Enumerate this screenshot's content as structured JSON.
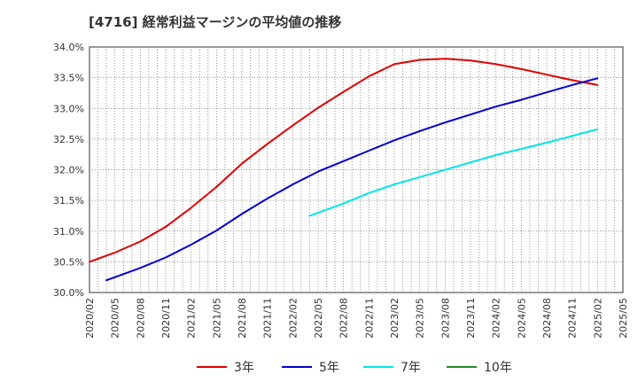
{
  "chart_data": {
    "type": "line",
    "title": "[4716]  経常利益マージンの平均値の推移",
    "xlabel": "",
    "ylabel": "",
    "ylim": [
      30.0,
      34.0
    ],
    "yticks": [
      "30.0%",
      "30.5%",
      "31.0%",
      "31.5%",
      "32.0%",
      "32.5%",
      "33.0%",
      "33.5%",
      "34.0%"
    ],
    "xticks": [
      "2020/02",
      "2020/05",
      "2020/08",
      "2020/11",
      "2021/02",
      "2021/05",
      "2021/08",
      "2021/11",
      "2022/02",
      "2022/05",
      "2022/08",
      "2022/11",
      "2023/02",
      "2023/05",
      "2023/08",
      "2023/11",
      "2024/02",
      "2024/05",
      "2024/08",
      "2024/11",
      "2025/02",
      "2025/05"
    ],
    "grid": true,
    "legend_position": "bottom",
    "series": [
      {
        "name": "3年",
        "color": "#dd0000",
        "points": [
          [
            "2020/02",
            30.5
          ],
          [
            "2020/05",
            30.65
          ],
          [
            "2020/08",
            30.83
          ],
          [
            "2020/11",
            31.07
          ],
          [
            "2021/02",
            31.38
          ],
          [
            "2021/05",
            31.72
          ],
          [
            "2021/08",
            32.1
          ],
          [
            "2021/11",
            32.42
          ],
          [
            "2022/02",
            32.72
          ],
          [
            "2022/05",
            33.01
          ],
          [
            "2022/08",
            33.27
          ],
          [
            "2022/11",
            33.52
          ],
          [
            "2023/02",
            33.72
          ],
          [
            "2023/05",
            33.79
          ],
          [
            "2023/08",
            33.81
          ],
          [
            "2023/11",
            33.78
          ],
          [
            "2024/02",
            33.72
          ],
          [
            "2024/05",
            33.64
          ],
          [
            "2024/08",
            33.55
          ],
          [
            "2024/11",
            33.46
          ],
          [
            "2025/02",
            33.38
          ]
        ]
      },
      {
        "name": "5年",
        "color": "#0000cc",
        "points": [
          [
            "2020/04",
            30.2
          ],
          [
            "2020/08",
            30.4
          ],
          [
            "2020/11",
            30.57
          ],
          [
            "2021/02",
            30.78
          ],
          [
            "2021/05",
            31.01
          ],
          [
            "2021/08",
            31.28
          ],
          [
            "2021/11",
            31.53
          ],
          [
            "2022/02",
            31.76
          ],
          [
            "2022/05",
            31.97
          ],
          [
            "2022/08",
            32.14
          ],
          [
            "2022/11",
            32.31
          ],
          [
            "2023/02",
            32.48
          ],
          [
            "2023/05",
            32.63
          ],
          [
            "2023/08",
            32.77
          ],
          [
            "2023/11",
            32.9
          ],
          [
            "2024/02",
            33.03
          ],
          [
            "2024/05",
            33.14
          ],
          [
            "2024/08",
            33.26
          ],
          [
            "2024/11",
            33.38
          ],
          [
            "2025/02",
            33.49
          ]
        ]
      },
      {
        "name": "7年",
        "color": "#00e5e5",
        "points": [
          [
            "2022/04",
            31.25
          ],
          [
            "2022/08",
            31.45
          ],
          [
            "2022/11",
            31.62
          ],
          [
            "2023/02",
            31.76
          ],
          [
            "2023/05",
            31.88
          ],
          [
            "2023/08",
            32.0
          ],
          [
            "2023/11",
            32.12
          ],
          [
            "2024/02",
            32.24
          ],
          [
            "2024/05",
            32.34
          ],
          [
            "2024/08",
            32.44
          ],
          [
            "2024/11",
            32.55
          ],
          [
            "2025/02",
            32.66
          ]
        ]
      },
      {
        "name": "10年",
        "color": "#228b22",
        "points": []
      }
    ]
  }
}
